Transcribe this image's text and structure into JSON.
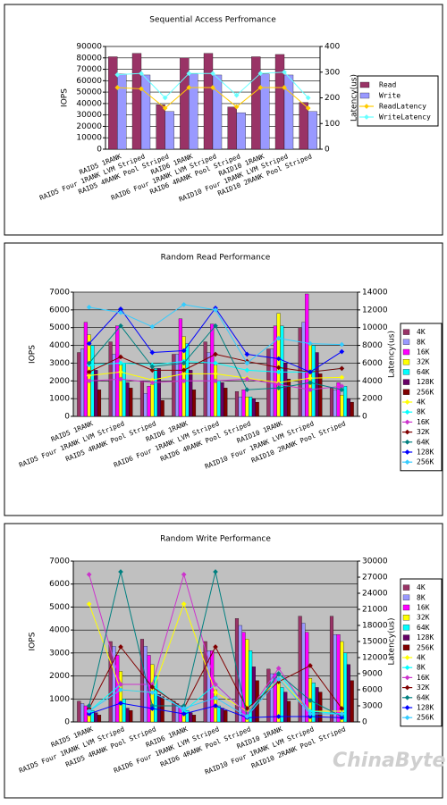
{
  "chart_data": [
    {
      "type": "combo",
      "title": "Sequential Access Perfromance",
      "y_label": "IOPS",
      "y2_label": "Latency(us)",
      "categories": [
        "RAID5 1RANK",
        "RAID5 Four 1RANK LVM Striped",
        "RAID5 4RANK Pool Striped",
        "RAID6 1RANK",
        "RAID6 Four 1RANK LVM Striped",
        "RAID6 4RANK Pool Striped",
        "RAID10 1RANK",
        "RAID10 Four 1RANK LVM Striped",
        "RAID10 2RANK Pool Striped"
      ],
      "ylim": [
        0,
        90000
      ],
      "yticks": [
        0,
        10000,
        20000,
        30000,
        40000,
        50000,
        60000,
        70000,
        80000,
        90000
      ],
      "y2lim": [
        0,
        400
      ],
      "y2ticks": [
        0,
        100,
        200,
        300,
        400
      ],
      "grid": true,
      "plot_color": "#ffffff",
      "legend": "right",
      "series": [
        {
          "name": "Read",
          "type": "bar",
          "color": "#993366",
          "values": [
            81000,
            84000,
            39000,
            80000,
            84000,
            37000,
            81000,
            83000,
            41000
          ]
        },
        {
          "name": "Write",
          "type": "bar",
          "color": "#9999ff",
          "values": [
            66000,
            65000,
            33000,
            66000,
            65000,
            32000,
            66000,
            65000,
            33000
          ]
        },
        {
          "name": "ReadLatency",
          "type": "line",
          "axis": "y2",
          "color": "#ffcc00",
          "values": [
            240,
            235,
            160,
            240,
            240,
            165,
            240,
            240,
            160
          ]
        },
        {
          "name": "WriteLatency",
          "type": "line",
          "axis": "y2",
          "color": "#66ffff",
          "values": [
            290,
            295,
            200,
            295,
            295,
            210,
            295,
            300,
            200
          ]
        }
      ]
    },
    {
      "type": "combo",
      "title": "Random Read Performance",
      "y_label": "IOPS",
      "y2_label": "Latency(us)",
      "categories": [
        "RAID5 1RANK",
        "RAID5 Four 1RANK LVM Striped",
        "RAID5 4RANK Pool Striped",
        "RAID6 1RANK",
        "RAID6 Four 1RANK LVM Striped",
        "RAID6 4RANK Pool Striped",
        "RAID10 1RANK",
        "RAID10 Four 1RANK LVM Striped",
        "RAID10 2RANK Pool Striped"
      ],
      "ylim": [
        0,
        7000
      ],
      "yticks": [
        0,
        1000,
        2000,
        3000,
        4000,
        5000,
        6000,
        7000
      ],
      "y2lim": [
        0,
        14000
      ],
      "y2ticks": [
        0,
        2000,
        4000,
        6000,
        8000,
        10000,
        12000,
        14000
      ],
      "grid": true,
      "plot_color": "#c0c0c0",
      "legend": "right",
      "series": [
        {
          "name": "4K",
          "type": "bar",
          "color": "#993366",
          "values": [
            3600,
            4200,
            2000,
            3500,
            4200,
            1400,
            3800,
            5000,
            1600
          ]
        },
        {
          "name": "8K",
          "type": "bar",
          "color": "#9999ff",
          "values": [
            3800,
            3500,
            1300,
            3500,
            3600,
            1100,
            3800,
            5300,
            1500
          ]
        },
        {
          "name": "16K",
          "type": "bar",
          "color": "#ff00ff",
          "values": [
            5300,
            5100,
            1700,
            5500,
            5200,
            1500,
            5100,
            6900,
            1900
          ]
        },
        {
          "name": "32K",
          "type": "bar",
          "color": "#ffff00",
          "values": [
            4600,
            2900,
            1800,
            4500,
            2900,
            1100,
            5800,
            4100,
            1200
          ]
        },
        {
          "name": "64K",
          "type": "bar",
          "color": "#00ffff",
          "values": [
            4000,
            3000,
            2700,
            4100,
            2000,
            1100,
            5100,
            4000,
            1700
          ]
        },
        {
          "name": "128K",
          "type": "bar",
          "color": "#660066",
          "values": [
            2600,
            1900,
            2700,
            2600,
            1900,
            1000,
            3000,
            3600,
            1000
          ]
        },
        {
          "name": "256K",
          "type": "bar",
          "color": "#800000",
          "values": [
            1500,
            1600,
            900,
            1500,
            1600,
            800,
            2100,
            2400,
            800
          ]
        },
        {
          "name": "4K",
          "type": "line",
          "axis": "y2",
          "color": "#ffff00",
          "values": [
            4600,
            5000,
            4100,
            4800,
            4800,
            4300,
            3800,
            4300,
            4400
          ]
        },
        {
          "name": "8K",
          "type": "line",
          "axis": "y2",
          "color": "#00ffff",
          "values": [
            5800,
            6000,
            5800,
            6200,
            6000,
            5200,
            5000,
            5000,
            5400
          ]
        },
        {
          "name": "16K",
          "type": "line",
          "axis": "y2",
          "color": "#cc33cc",
          "values": [
            4000,
            4200,
            3800,
            4000,
            4000,
            4200,
            3600,
            3000,
            3400
          ]
        },
        {
          "name": "32K",
          "type": "line",
          "axis": "y2",
          "color": "#800000",
          "values": [
            5000,
            6700,
            5200,
            5200,
            7000,
            6200,
            5500,
            5000,
            5400
          ]
        },
        {
          "name": "64K",
          "type": "line",
          "axis": "y2",
          "color": "#008080",
          "values": [
            6000,
            10200,
            5600,
            6000,
            10200,
            3000,
            3200,
            3800,
            3000
          ]
        },
        {
          "name": "128K",
          "type": "line",
          "axis": "y2",
          "color": "#0000ff",
          "values": [
            8200,
            12100,
            7200,
            7400,
            12200,
            7000,
            6500,
            5000,
            7300
          ]
        },
        {
          "name": "256K",
          "type": "line",
          "axis": "y2",
          "color": "#33ccff",
          "values": [
            12300,
            11700,
            10100,
            12600,
            12000,
            6000,
            8800,
            8200,
            8100
          ]
        }
      ]
    },
    {
      "type": "combo",
      "title": "Random Write Performance",
      "y_label": "IOPS",
      "y2_label": "Latency(us)",
      "categories": [
        "RAID5 1RANK",
        "RAID5 Four 1RANK LVM Striped",
        "RAID5 4RANK Pool Striped",
        "RAID6 1RANK",
        "RAID6 Four 1RANK LVM Striped",
        "RAID6 4RANK Pool Striped",
        "RAID10 1RANK",
        "RAID10 Four 1RANK LVM Striped",
        "RAID10 2RANK Pool Striped"
      ],
      "ylim": [
        0,
        7000
      ],
      "yticks": [
        0,
        1000,
        2000,
        3000,
        4000,
        5000,
        6000,
        7000
      ],
      "y2lim": [
        0,
        30000
      ],
      "y2ticks": [
        0,
        3000,
        6000,
        9000,
        12000,
        15000,
        18000,
        21000,
        24000,
        27000,
        30000
      ],
      "grid": true,
      "plot_color": "#c0c0c0",
      "legend": "right",
      "series": [
        {
          "name": "4K",
          "type": "bar",
          "color": "#993366",
          "values": [
            900,
            3500,
            3600,
            900,
            3500,
            4500,
            2300,
            4600,
            4600
          ]
        },
        {
          "name": "8K",
          "type": "bar",
          "color": "#9999ff",
          "values": [
            800,
            3300,
            3300,
            800,
            3100,
            4200,
            2100,
            4300,
            3800
          ]
        },
        {
          "name": "16K",
          "type": "bar",
          "color": "#ff00ff",
          "values": [
            700,
            2900,
            2900,
            700,
            3100,
            3900,
            2100,
            3900,
            3800
          ]
        },
        {
          "name": "32K",
          "type": "bar",
          "color": "#ffff00",
          "values": [
            600,
            2200,
            2500,
            600,
            1400,
            3600,
            1800,
            1900,
            3500
          ]
        },
        {
          "name": "64K",
          "type": "bar",
          "color": "#00ffff",
          "values": [
            500,
            1000,
            2000,
            500,
            700,
            3100,
            1500,
            1700,
            3000
          ]
        },
        {
          "name": "128K",
          "type": "bar",
          "color": "#660066",
          "values": [
            400,
            600,
            1200,
            400,
            600,
            2400,
            1300,
            1500,
            2500
          ]
        },
        {
          "name": "256K",
          "type": "bar",
          "color": "#800000",
          "values": [
            300,
            500,
            1100,
            300,
            500,
            1800,
            900,
            1300,
            1800
          ]
        },
        {
          "name": "4K",
          "type": "line",
          "axis": "y2",
          "color": "#ffff00",
          "values": [
            22000,
            6000,
            5500,
            22000,
            5500,
            2000,
            8000,
            2000,
            2000
          ]
        },
        {
          "name": "8K",
          "type": "line",
          "axis": "y2",
          "color": "#00ffff",
          "values": [
            2000,
            7000,
            7000,
            2000,
            7000,
            1500,
            9000,
            2000,
            1500
          ]
        },
        {
          "name": "16K",
          "type": "line",
          "axis": "y2",
          "color": "#cc33cc",
          "values": [
            27500,
            7000,
            7000,
            27500,
            7000,
            1500,
            10000,
            1500,
            1500
          ]
        },
        {
          "name": "32K",
          "type": "line",
          "axis": "y2",
          "color": "#800000",
          "values": [
            2500,
            14000,
            6500,
            2500,
            14000,
            2500,
            7500,
            10500,
            2500
          ]
        },
        {
          "name": "64K",
          "type": "line",
          "axis": "y2",
          "color": "#008080",
          "values": [
            3000,
            28000,
            3000,
            3000,
            28000,
            1000,
            9000,
            4000,
            1000
          ]
        },
        {
          "name": "128K",
          "type": "line",
          "axis": "y2",
          "color": "#0000ff",
          "values": [
            1500,
            3500,
            2500,
            1500,
            3000,
            800,
            1000,
            1000,
            800
          ]
        },
        {
          "name": "256K",
          "type": "line",
          "axis": "y2",
          "color": "#33ccff",
          "values": [
            2000,
            6000,
            5500,
            2500,
            4500,
            1000,
            8000,
            1500,
            1500
          ]
        }
      ]
    }
  ],
  "watermark": "ChinaByte"
}
